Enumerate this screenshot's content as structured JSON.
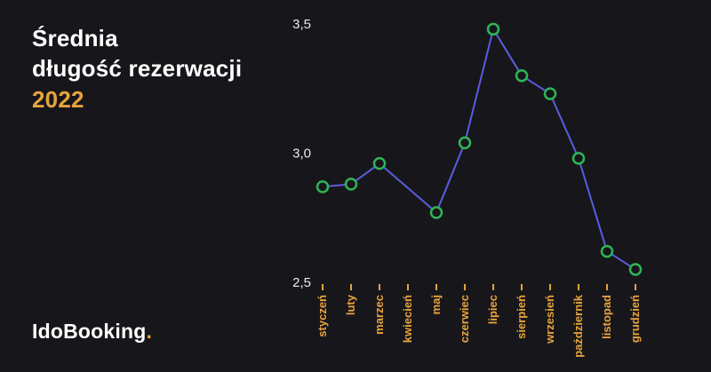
{
  "header": {
    "title_line1": "Średnia",
    "title_line2": "długość rezerwacji",
    "year": "2022"
  },
  "logo": {
    "text": "IdoBooking",
    "dot": "."
  },
  "colors": {
    "background": "#17171b",
    "accent_orange": "#e8a33d",
    "line_blue": "#5a5ce0",
    "marker_green": "#2fb457",
    "ytick_text": "#eaeaec"
  },
  "chart_data": {
    "type": "line",
    "title": "Średnia długość rezerwacji 2022",
    "categories": [
      "styczeń",
      "luty",
      "marzec",
      "kwiecień",
      "maj",
      "czerwiec",
      "lipiec",
      "sierpień",
      "wrzesień",
      "październik",
      "listopad",
      "grudzień"
    ],
    "values": [
      2.87,
      2.88,
      2.96,
      null,
      2.77,
      3.04,
      3.48,
      3.3,
      3.23,
      2.98,
      2.62,
      2.55
    ],
    "ylim": [
      2.5,
      3.5
    ],
    "yticks": [
      3.5,
      3.0,
      2.5
    ],
    "ytick_labels": [
      "3,5",
      "3,0",
      "2,5"
    ],
    "xlabel": "",
    "ylabel": "",
    "grid": false,
    "legend": false,
    "marker_style": "open-circle"
  }
}
